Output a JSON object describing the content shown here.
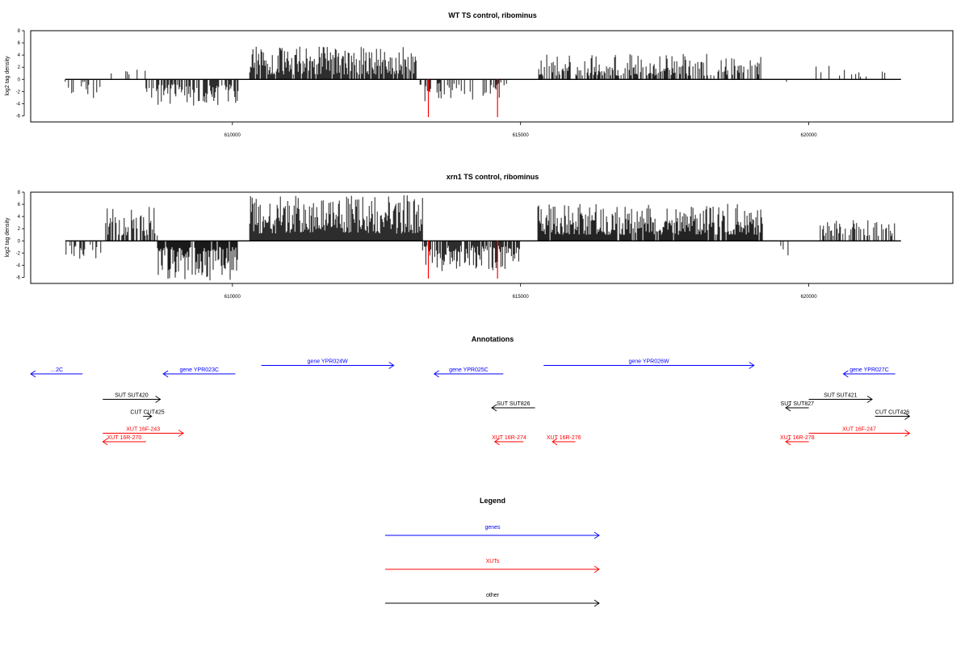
{
  "chart_data": [
    {
      "type": "bar",
      "title": "WT TS control, ribominus",
      "ylabel": "log2 tag density",
      "xlabel": "",
      "xlim": [
        606500,
        622500
      ],
      "ylim": [
        -7,
        8
      ],
      "yticks": [
        8,
        6,
        4,
        2,
        0,
        -2,
        -4,
        -6
      ],
      "xticks": [
        610000,
        615000,
        620000
      ],
      "baseline_range": [
        607100,
        621600
      ],
      "markers": [
        613400,
        614600
      ],
      "marker_color": "#ff0000",
      "bar_color": "#000000",
      "bands": [
        {
          "start": 607100,
          "end": 607800,
          "min": -3.4,
          "max": -0.4,
          "density": 0.35
        },
        {
          "start": 607800,
          "end": 608500,
          "min": 0.6,
          "max": 2.2,
          "density": 0.12
        },
        {
          "start": 608500,
          "end": 610100,
          "min": -4.5,
          "max": -0.8,
          "density": 0.6
        },
        {
          "start": 610300,
          "end": 613200,
          "min": 0.8,
          "max": 5.4,
          "density": 0.85
        },
        {
          "start": 613200,
          "end": 614800,
          "min": -3.6,
          "max": -0.5,
          "density": 0.35
        },
        {
          "start": 615300,
          "end": 619200,
          "min": 0.6,
          "max": 4.2,
          "density": 0.55
        },
        {
          "start": 619600,
          "end": 620000,
          "min": -1.2,
          "max": -0.3,
          "density": 0.05
        },
        {
          "start": 620100,
          "end": 621400,
          "min": 0.4,
          "max": 2.5,
          "density": 0.12
        }
      ]
    },
    {
      "type": "bar",
      "title": "xrn1 TS control, ribominus",
      "ylabel": "log2 tag density",
      "xlabel": "",
      "xlim": [
        606500,
        622500
      ],
      "ylim": [
        -7,
        8
      ],
      "yticks": [
        8,
        6,
        4,
        2,
        0,
        -2,
        -4,
        -6
      ],
      "xticks": [
        610000,
        615000,
        620000
      ],
      "baseline_range": [
        607100,
        621600
      ],
      "markers": [
        613400,
        614600
      ],
      "marker_color": "#ff0000",
      "bar_color": "#000000",
      "bands": [
        {
          "start": 607100,
          "end": 607800,
          "min": -3.8,
          "max": -0.6,
          "density": 0.4
        },
        {
          "start": 607800,
          "end": 608700,
          "min": 0.8,
          "max": 6.0,
          "density": 0.55
        },
        {
          "start": 608700,
          "end": 610100,
          "min": -6.5,
          "max": -1.0,
          "density": 0.9
        },
        {
          "start": 610300,
          "end": 613300,
          "min": 1.2,
          "max": 7.5,
          "density": 1.0
        },
        {
          "start": 613300,
          "end": 615000,
          "min": -5.0,
          "max": -0.8,
          "density": 0.8
        },
        {
          "start": 615300,
          "end": 619200,
          "min": 1.0,
          "max": 6.2,
          "density": 0.95
        },
        {
          "start": 619500,
          "end": 620000,
          "min": -2.6,
          "max": -0.5,
          "density": 0.08
        },
        {
          "start": 620200,
          "end": 621500,
          "min": 0.8,
          "max": 3.6,
          "density": 0.6
        }
      ]
    },
    {
      "type": "annotation_track",
      "title": "Annotations",
      "xlim": [
        606500,
        622500
      ],
      "features": [
        {
          "label": "…2C",
          "start": 605500,
          "end": 607400,
          "strand": "-",
          "row": 0,
          "color": "#0000ff"
        },
        {
          "label": "gene YPR023C",
          "start": 608800,
          "end": 610050,
          "strand": "-",
          "row": 0,
          "color": "#0000ff"
        },
        {
          "label": "gene YPR024W",
          "start": 610500,
          "end": 612800,
          "strand": "+",
          "row": -1,
          "color": "#0000ff"
        },
        {
          "label": "gene YPR025C",
          "start": 613500,
          "end": 614700,
          "strand": "-",
          "row": 0,
          "color": "#0000ff"
        },
        {
          "label": "gene YPR026W",
          "start": 615400,
          "end": 619050,
          "strand": "+",
          "row": -1,
          "color": "#0000ff"
        },
        {
          "label": "gene YPR027C",
          "start": 620600,
          "end": 621500,
          "strand": "-",
          "row": 0,
          "color": "#0000ff"
        },
        {
          "label": "SUT SUT420",
          "start": 607750,
          "end": 608750,
          "strand": "+",
          "row": 3,
          "color": "#000000"
        },
        {
          "label": "CUT CUT425",
          "start": 608450,
          "end": 608600,
          "strand": "+",
          "row": 5,
          "color": "#000000"
        },
        {
          "label": "SUT SUT826",
          "start": 614500,
          "end": 615250,
          "strand": "-",
          "row": 4,
          "color": "#000000"
        },
        {
          "label": "SUT SUT827",
          "start": 619600,
          "end": 620000,
          "strand": "-",
          "row": 4,
          "color": "#000000"
        },
        {
          "label": "SUT SUT421",
          "start": 620000,
          "end": 621100,
          "strand": "+",
          "row": 3,
          "color": "#000000"
        },
        {
          "label": "CUT CUT426",
          "start": 621150,
          "end": 621750,
          "strand": "+",
          "row": 5,
          "color": "#000000"
        },
        {
          "label": "XUT 16F-243",
          "start": 607750,
          "end": 609150,
          "strand": "+",
          "row": 7,
          "color": "#ff0000"
        },
        {
          "label": "XUT 16R-270",
          "start": 607750,
          "end": 608500,
          "strand": "-",
          "row": 8,
          "color": "#ff0000"
        },
        {
          "label": "XUT 16R-274",
          "start": 614550,
          "end": 615050,
          "strand": "-",
          "row": 8,
          "color": "#ff0000"
        },
        {
          "label": "XUT 16R-276",
          "start": 615550,
          "end": 615950,
          "strand": "-",
          "row": 8,
          "color": "#ff0000"
        },
        {
          "label": "XUT 16R-278",
          "start": 619600,
          "end": 620000,
          "strand": "-",
          "row": 8,
          "color": "#ff0000"
        },
        {
          "label": "XUT 16F-247",
          "start": 620000,
          "end": 621750,
          "strand": "+",
          "row": 7,
          "color": "#ff0000"
        }
      ]
    }
  ],
  "legend": {
    "title": "Legend",
    "items": [
      {
        "label": "genes",
        "color": "#0000ff"
      },
      {
        "label": "XUTs",
        "color": "#ff0000"
      },
      {
        "label": "other",
        "color": "#000000"
      }
    ]
  }
}
